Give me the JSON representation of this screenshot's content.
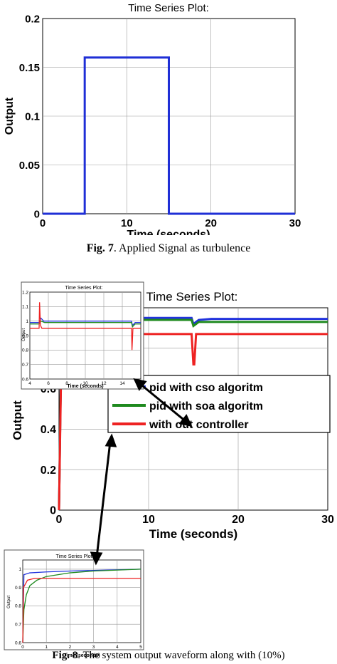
{
  "figure7": {
    "caption_prefix": "Fig. 7",
    "caption_text": ". Applied Signal as turbulence",
    "chart_data": {
      "type": "line",
      "title": "Time Series Plot:",
      "xlabel": "Time (seconds)",
      "ylabel": "Output",
      "xlim": [
        0,
        30
      ],
      "ylim": [
        0,
        0.2
      ],
      "xticks": [
        0,
        10,
        20,
        30
      ],
      "yticks": [
        0,
        0.05,
        0.1,
        0.15,
        0.2
      ],
      "xtick_labels": [
        "0",
        "10",
        "20",
        "30"
      ],
      "ytick_labels": [
        "0",
        "0.05",
        "0.1",
        "0.15",
        "0.2"
      ],
      "grid": true,
      "series": [
        {
          "color": "#1f2fd6",
          "x": [
            0,
            5,
            5,
            15,
            15,
            30
          ],
          "y": [
            0,
            0,
            0.16,
            0.16,
            0,
            0
          ]
        }
      ]
    }
  },
  "figure8": {
    "caption_prefix": "Fig. 8",
    "caption_text": ". The system output waveform along with (10%)",
    "legend": [
      "pid with cso algoritm",
      "pid with soa algoritm",
      "with out controller"
    ],
    "main_chart": {
      "type": "line",
      "title": "Time Series Plot:",
      "xlabel": "Time (seconds)",
      "ylabel": "Output",
      "xlim": [
        0,
        30
      ],
      "ylim": [
        0,
        1
      ],
      "xticks": [
        0,
        10,
        20,
        30
      ],
      "xtick_labels": [
        "0",
        "10",
        "20",
        "30"
      ],
      "ytick_labels": [
        "0",
        "0.2",
        "0.4",
        "0.6"
      ],
      "legend_position": "center",
      "grid": true,
      "series": [
        {
          "name": "pid with cso algoritm",
          "color": "#2233dd",
          "x": [
            0,
            0.3,
            1,
            14.8,
            15,
            15.6,
            17,
            30
          ],
          "y": [
            0,
            0.97,
            0.95,
            0.95,
            0.92,
            0.94,
            0.945,
            0.945
          ]
        },
        {
          "name": "pid with soa algoritm",
          "color": "#1f8a1f",
          "x": [
            0,
            0.3,
            1,
            14.8,
            15,
            15.6,
            17,
            30
          ],
          "y": [
            0,
            0.95,
            0.94,
            0.94,
            0.91,
            0.93,
            0.93,
            0.93
          ]
        },
        {
          "name": "with out controller",
          "color": "#ee2222",
          "x": [
            0,
            0.3,
            14.8,
            15,
            15.1,
            15.3,
            30
          ],
          "y": [
            0,
            0.87,
            0.87,
            0.72,
            0.72,
            0.87,
            0.87
          ]
        }
      ]
    },
    "inset_top": {
      "title": "Time Series Plot:",
      "xlabel": "Time (seconds)",
      "ylabel": "Output",
      "xlim": [
        4,
        16
      ],
      "ylim": [
        0.6,
        1.2
      ],
      "xtick_labels": [
        "4",
        "6",
        "8",
        "10",
        "12",
        "14"
      ],
      "ytick_labels": [
        "0.6",
        "0.7",
        "0.8",
        "0.9",
        "1",
        "1.1",
        "1.2"
      ],
      "series": [
        {
          "color": "#2233dd",
          "x": [
            4,
            5,
            5.2,
            5.5,
            15,
            15.1,
            15.4,
            16
          ],
          "y": [
            0.99,
            0.99,
            1.02,
            1.0,
            1.0,
            0.97,
            0.99,
            0.99
          ]
        },
        {
          "color": "#1f8a1f",
          "x": [
            4,
            5,
            5.2,
            5.6,
            15,
            15.1,
            15.4,
            16
          ],
          "y": [
            0.98,
            0.98,
            1.0,
            0.99,
            0.99,
            0.96,
            0.98,
            0.98
          ]
        },
        {
          "color": "#ee2222",
          "x": [
            4,
            5,
            5.05,
            5.15,
            5.3,
            15,
            15.05,
            15.15,
            15.3,
            16
          ],
          "y": [
            0.95,
            0.95,
            1.13,
            0.97,
            0.95,
            0.95,
            0.8,
            0.95,
            0.95,
            0.95
          ]
        }
      ]
    },
    "inset_bottom": {
      "title": "Time Series Plot",
      "xlabel": "Time (seconds)",
      "ylabel": "Output",
      "xlim": [
        0,
        5
      ],
      "ylim": [
        0.6,
        1.05
      ],
      "xtick_labels": [
        "0",
        "1",
        "2",
        "3",
        "4",
        "5"
      ],
      "ytick_labels": [
        "0.6",
        "0.7",
        "0.8",
        "0.9",
        "1"
      ],
      "series": [
        {
          "color": "#2233dd",
          "x": [
            0,
            0.05,
            0.3,
            1,
            2,
            5
          ],
          "y": [
            0.6,
            0.97,
            0.98,
            0.985,
            0.99,
            1.0
          ]
        },
        {
          "color": "#1f8a1f",
          "x": [
            0,
            0.05,
            0.15,
            0.3,
            0.6,
            1,
            2,
            3,
            5
          ],
          "y": [
            0.6,
            0.78,
            0.86,
            0.91,
            0.94,
            0.96,
            0.98,
            0.99,
            1.0
          ]
        },
        {
          "color": "#ee2222",
          "x": [
            0,
            0.03,
            0.2,
            0.5,
            5
          ],
          "y": [
            0.6,
            0.9,
            0.94,
            0.95,
            0.95
          ]
        }
      ]
    }
  }
}
